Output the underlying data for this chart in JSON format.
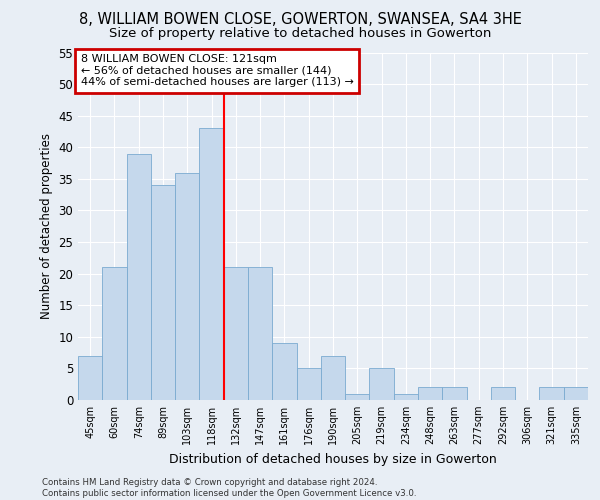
{
  "title": "8, WILLIAM BOWEN CLOSE, GOWERTON, SWANSEA, SA4 3HE",
  "subtitle": "Size of property relative to detached houses in Gowerton",
  "xlabel": "Distribution of detached houses by size in Gowerton",
  "ylabel": "Number of detached properties",
  "bar_color": "#c5d8ec",
  "bar_edgecolor": "#7aaad0",
  "annotation_line1": "8 WILLIAM BOWEN CLOSE: 121sqm",
  "annotation_line2": "← 56% of detached houses are smaller (144)",
  "annotation_line3": "44% of semi-detached houses are larger (113) →",
  "footer_line1": "Contains HM Land Registry data © Crown copyright and database right 2024.",
  "footer_line2": "Contains public sector information licensed under the Open Government Licence v3.0.",
  "bin_labels": [
    "45sqm",
    "60sqm",
    "74sqm",
    "89sqm",
    "103sqm",
    "118sqm",
    "132sqm",
    "147sqm",
    "161sqm",
    "176sqm",
    "190sqm",
    "205sqm",
    "219sqm",
    "234sqm",
    "248sqm",
    "263sqm",
    "277sqm",
    "292sqm",
    "306sqm",
    "321sqm",
    "335sqm"
  ],
  "values": [
    7,
    21,
    39,
    34,
    36,
    43,
    21,
    21,
    9,
    5,
    7,
    1,
    5,
    1,
    2,
    2,
    0,
    2,
    0,
    2,
    2
  ],
  "red_line_idx": 5.5,
  "ylim": [
    0,
    55
  ],
  "yticks": [
    0,
    5,
    10,
    15,
    20,
    25,
    30,
    35,
    40,
    45,
    50,
    55
  ],
  "background_color": "#e8eef5",
  "grid_color": "#ffffff",
  "annotation_box_edgecolor": "#cc0000",
  "annotation_box_facecolor": "#ffffff"
}
